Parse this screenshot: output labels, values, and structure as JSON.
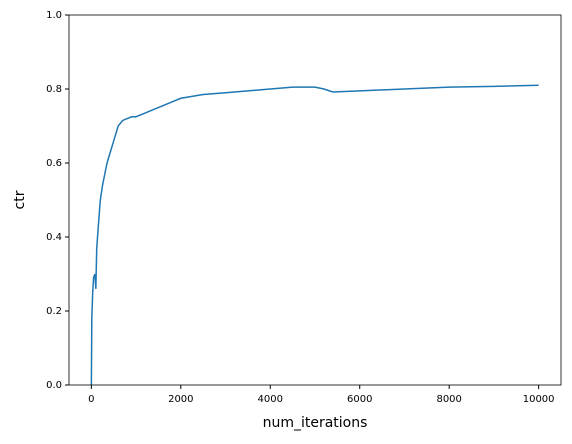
{
  "chart_data": {
    "type": "line",
    "x_label": "num_iterations",
    "y_label": "ctr",
    "series": [
      {
        "name": "ctr",
        "color": "#1f77b4",
        "x": [
          0,
          10,
          30,
          50,
          80,
          100,
          120,
          150,
          200,
          250,
          300,
          350,
          400,
          500,
          600,
          700,
          800,
          900,
          1000,
          1200,
          1400,
          1600,
          1800,
          2000,
          2500,
          3000,
          3500,
          4000,
          4500,
          5000,
          5200,
          5400,
          6000,
          7000,
          8000,
          9000,
          10000
        ],
        "values": [
          0,
          0.18,
          0.25,
          0.29,
          0.3,
          0.26,
          0.37,
          0.42,
          0.5,
          0.54,
          0.57,
          0.6,
          0.62,
          0.66,
          0.7,
          0.715,
          0.72,
          0.725,
          0.725,
          0.735,
          0.745,
          0.755,
          0.765,
          0.775,
          0.785,
          0.79,
          0.795,
          0.8,
          0.805,
          0.805,
          0.8,
          0.792,
          0.795,
          0.8,
          0.805,
          0.807,
          0.81
        ]
      }
    ],
    "xlim": [
      -500,
      10500
    ],
    "xticks": [
      0,
      2000,
      4000,
      6000,
      8000,
      10000
    ],
    "ylim": [
      0,
      1
    ],
    "yticks": [
      {
        "value": 0,
        "label": "0.0"
      },
      {
        "value": 0.2,
        "label": "0.2"
      },
      {
        "value": 0.4,
        "label": "0.4"
      },
      {
        "value": 0.6,
        "label": "0.6"
      },
      {
        "value": 0.8,
        "label": "0.8"
      },
      {
        "value": 1,
        "label": "1.0"
      }
    ]
  }
}
